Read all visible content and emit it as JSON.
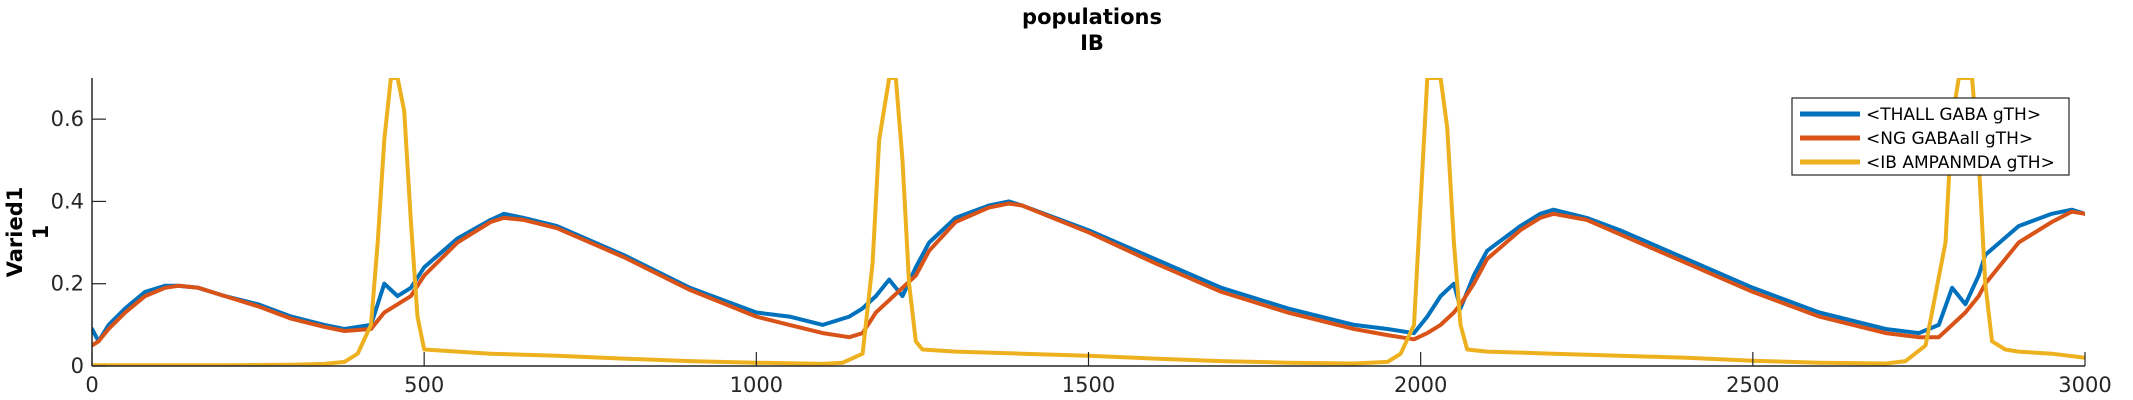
{
  "chart_data": {
    "type": "line",
    "title_lines": [
      "populations",
      "IB"
    ],
    "ylabel_lines": [
      "Varied1",
      "1"
    ],
    "xlabel": "",
    "xlim": [
      0,
      3000
    ],
    "ylim": [
      0,
      0.7
    ],
    "grid": false,
    "legend_position": "top-right",
    "x_ticks": [
      0,
      500,
      1000,
      1500,
      2000,
      2500,
      3000
    ],
    "y_ticks": [
      0,
      0.2,
      0.4,
      0.6
    ],
    "x_tick_labels": [
      "0",
      "500",
      "1000",
      "1500",
      "2000",
      "2500",
      "3000"
    ],
    "y_tick_labels": [
      "0",
      "0.2",
      "0.4",
      "0.6"
    ],
    "series": [
      {
        "name": "<THALL GABA gTH>",
        "color": "#0072BD",
        "x": [
          0,
          10,
          25,
          50,
          80,
          110,
          130,
          160,
          200,
          250,
          300,
          350,
          380,
          420,
          440,
          460,
          480,
          500,
          550,
          600,
          620,
          650,
          700,
          800,
          900,
          1000,
          1050,
          1100,
          1140,
          1160,
          1180,
          1200,
          1220,
          1240,
          1260,
          1300,
          1350,
          1380,
          1400,
          1500,
          1600,
          1700,
          1800,
          1900,
          1950,
          1990,
          2010,
          2030,
          2050,
          2060,
          2080,
          2100,
          2150,
          2180,
          2200,
          2250,
          2300,
          2400,
          2500,
          2600,
          2700,
          2750,
          2780,
          2800,
          2820,
          2840,
          2850,
          2900,
          2950,
          2980,
          3000
        ],
        "y": [
          0.09,
          0.06,
          0.1,
          0.14,
          0.18,
          0.195,
          0.195,
          0.19,
          0.17,
          0.15,
          0.12,
          0.1,
          0.09,
          0.1,
          0.2,
          0.17,
          0.19,
          0.24,
          0.31,
          0.355,
          0.37,
          0.36,
          0.34,
          0.27,
          0.19,
          0.13,
          0.12,
          0.1,
          0.12,
          0.14,
          0.17,
          0.21,
          0.17,
          0.24,
          0.3,
          0.36,
          0.39,
          0.4,
          0.39,
          0.33,
          0.26,
          0.19,
          0.14,
          0.1,
          0.09,
          0.08,
          0.12,
          0.17,
          0.2,
          0.14,
          0.22,
          0.28,
          0.34,
          0.37,
          0.38,
          0.36,
          0.33,
          0.26,
          0.19,
          0.13,
          0.09,
          0.08,
          0.1,
          0.19,
          0.15,
          0.22,
          0.27,
          0.34,
          0.37,
          0.38,
          0.37
        ]
      },
      {
        "name": "<NG GABAall gTH>",
        "color": "#D95319",
        "x": [
          0,
          10,
          25,
          50,
          80,
          110,
          130,
          160,
          200,
          250,
          300,
          350,
          380,
          420,
          440,
          460,
          480,
          500,
          550,
          600,
          620,
          650,
          700,
          800,
          900,
          1000,
          1050,
          1100,
          1140,
          1160,
          1180,
          1200,
          1220,
          1240,
          1260,
          1300,
          1350,
          1380,
          1400,
          1500,
          1600,
          1700,
          1800,
          1900,
          1950,
          1990,
          2010,
          2030,
          2050,
          2060,
          2080,
          2100,
          2150,
          2180,
          2200,
          2250,
          2300,
          2400,
          2500,
          2600,
          2700,
          2750,
          2780,
          2800,
          2820,
          2840,
          2850,
          2900,
          2950,
          2980,
          3000
        ],
        "y": [
          0.05,
          0.06,
          0.09,
          0.13,
          0.17,
          0.19,
          0.195,
          0.19,
          0.17,
          0.145,
          0.115,
          0.095,
          0.085,
          0.09,
          0.13,
          0.15,
          0.17,
          0.22,
          0.3,
          0.35,
          0.36,
          0.355,
          0.335,
          0.265,
          0.185,
          0.12,
          0.1,
          0.08,
          0.07,
          0.08,
          0.13,
          0.16,
          0.19,
          0.22,
          0.28,
          0.35,
          0.385,
          0.395,
          0.39,
          0.325,
          0.25,
          0.18,
          0.13,
          0.09,
          0.075,
          0.065,
          0.08,
          0.1,
          0.13,
          0.15,
          0.2,
          0.26,
          0.33,
          0.36,
          0.37,
          0.355,
          0.32,
          0.25,
          0.18,
          0.12,
          0.08,
          0.07,
          0.07,
          0.1,
          0.13,
          0.17,
          0.2,
          0.3,
          0.35,
          0.375,
          0.37
        ]
      },
      {
        "name": "<IB AMPANMDA gTH>",
        "color": "#EDB120",
        "x": [
          0,
          100,
          200,
          300,
          350,
          380,
          400,
          420,
          430,
          440,
          450,
          460,
          470,
          480,
          490,
          500,
          550,
          600,
          700,
          800,
          900,
          1000,
          1100,
          1130,
          1160,
          1175,
          1185,
          1200,
          1210,
          1220,
          1230,
          1240,
          1250,
          1300,
          1400,
          1500,
          1600,
          1700,
          1800,
          1900,
          1950,
          1970,
          1990,
          2000,
          2010,
          2020,
          2030,
          2040,
          2050,
          2060,
          2070,
          2100,
          2200,
          2300,
          2400,
          2500,
          2600,
          2700,
          2730,
          2760,
          2790,
          2800,
          2810,
          2820,
          2830,
          2840,
          2850,
          2860,
          2880,
          2900,
          2950,
          3000
        ],
        "y": [
          0.002,
          0.002,
          0.002,
          0.003,
          0.005,
          0.01,
          0.03,
          0.1,
          0.3,
          0.55,
          0.7,
          0.7,
          0.62,
          0.35,
          0.12,
          0.04,
          0.035,
          0.03,
          0.025,
          0.018,
          0.012,
          0.008,
          0.005,
          0.008,
          0.03,
          0.25,
          0.55,
          0.7,
          0.7,
          0.5,
          0.2,
          0.06,
          0.04,
          0.035,
          0.03,
          0.025,
          0.018,
          0.012,
          0.008,
          0.006,
          0.01,
          0.03,
          0.1,
          0.4,
          0.7,
          0.7,
          0.7,
          0.58,
          0.3,
          0.1,
          0.04,
          0.035,
          0.03,
          0.025,
          0.02,
          0.013,
          0.008,
          0.006,
          0.012,
          0.05,
          0.3,
          0.6,
          0.7,
          0.7,
          0.7,
          0.5,
          0.2,
          0.06,
          0.04,
          0.035,
          0.03,
          0.02
        ]
      }
    ]
  }
}
